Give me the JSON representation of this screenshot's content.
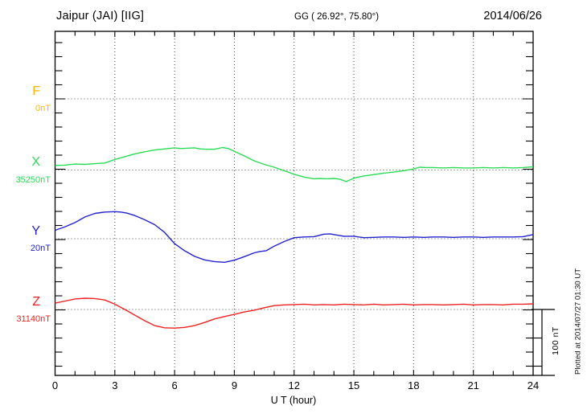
{
  "header": {
    "station": "Jaipur (JAI)  [IIG]",
    "coordinates": "GG ( 26.92°,  75.80°)",
    "date": "2014/06/26"
  },
  "footer": {
    "plotted_note": "Plotted at 2014/07/27 01:30 UT"
  },
  "colors": {
    "frame": "#000000",
    "grid": "#444444",
    "background": "#ffffff"
  },
  "chart_data": {
    "type": "line",
    "title": "Jaipur (JAI)  [IIG] magnetogram, 2014/06/26",
    "xlabel": "U T (hour)",
    "ylabel": "",
    "x_range": [
      0,
      24
    ],
    "x_major_ticks": [
      0,
      3,
      6,
      9,
      12,
      15,
      18,
      21,
      24
    ],
    "x_minor_tick_hours": 1,
    "minor_tick_nT": 20,
    "grid": "dotted vertical lines every 3 h; dotted horizontal line at each trace baseline",
    "legend_position": "left margin, one label per stacked trace",
    "scale_bar": {
      "label": "100 nT",
      "nT": 100
    },
    "series": [
      {
        "id": "F",
        "label": "F",
        "baseline_label": "0nT",
        "baseline_value_nT": 0,
        "color": "#FFB300",
        "note": "no trace plotted (data gap)",
        "points": []
      },
      {
        "id": "X",
        "label": "X",
        "baseline_label": "35250nT",
        "baseline_value_nT": 35250,
        "color": "#2BDB55",
        "points": [
          [
            0,
            6.5
          ],
          [
            0.5,
            7
          ],
          [
            1,
            8.5
          ],
          [
            1.5,
            8
          ],
          [
            2,
            9
          ],
          [
            2.5,
            10
          ],
          [
            3,
            15
          ],
          [
            3.5,
            19
          ],
          [
            4,
            23
          ],
          [
            4.5,
            26
          ],
          [
            5,
            28.5
          ],
          [
            5.5,
            30
          ],
          [
            6,
            31.5
          ],
          [
            6.3,
            30.5
          ],
          [
            6.6,
            31
          ],
          [
            7,
            31.5
          ],
          [
            7.3,
            30
          ],
          [
            7.6,
            29.5
          ],
          [
            8,
            29.5
          ],
          [
            8.4,
            32
          ],
          [
            8.7,
            30.5
          ],
          [
            9,
            26.5
          ],
          [
            9.5,
            20
          ],
          [
            10,
            13
          ],
          [
            10.5,
            8
          ],
          [
            11,
            4
          ],
          [
            11.5,
            -1
          ],
          [
            12,
            -6
          ],
          [
            12.5,
            -10
          ],
          [
            13,
            -12.5
          ],
          [
            13.3,
            -12
          ],
          [
            13.6,
            -12.5
          ],
          [
            14,
            -12
          ],
          [
            14.3,
            -13
          ],
          [
            14.6,
            -16.5
          ],
          [
            14.9,
            -13
          ],
          [
            15,
            -11.5
          ],
          [
            15.5,
            -8.5
          ],
          [
            16,
            -6.5
          ],
          [
            16.5,
            -4.5
          ],
          [
            17,
            -3
          ],
          [
            17.5,
            -1
          ],
          [
            18,
            1.5
          ],
          [
            18.3,
            4
          ],
          [
            18.6,
            3.5
          ],
          [
            19,
            3.5
          ],
          [
            19.5,
            3
          ],
          [
            20,
            3.5
          ],
          [
            20.5,
            3
          ],
          [
            21,
            3
          ],
          [
            21.5,
            3.5
          ],
          [
            22,
            3
          ],
          [
            22.5,
            3.5
          ],
          [
            23,
            3
          ],
          [
            23.5,
            3.5
          ],
          [
            24,
            4.5
          ]
        ]
      },
      {
        "id": "Y",
        "label": "Y",
        "baseline_label": "20nT",
        "baseline_value_nT": 20,
        "color": "#2222CC",
        "points": [
          [
            0,
            12
          ],
          [
            0.5,
            17
          ],
          [
            1,
            23
          ],
          [
            1.5,
            31
          ],
          [
            2,
            36
          ],
          [
            2.5,
            38
          ],
          [
            3,
            38.5
          ],
          [
            3.3,
            38
          ],
          [
            3.6,
            36.5
          ],
          [
            4,
            33
          ],
          [
            4.5,
            27
          ],
          [
            5,
            20
          ],
          [
            5.5,
            9
          ],
          [
            6,
            -7
          ],
          [
            6.5,
            -17
          ],
          [
            7,
            -25
          ],
          [
            7.5,
            -30
          ],
          [
            8,
            -32.5
          ],
          [
            8.5,
            -33.5
          ],
          [
            9,
            -30.5
          ],
          [
            9.5,
            -25.5
          ],
          [
            10,
            -20
          ],
          [
            10.3,
            -18
          ],
          [
            10.6,
            -17
          ],
          [
            11,
            -10.5
          ],
          [
            11.5,
            -4
          ],
          [
            12,
            1.5
          ],
          [
            12.5,
            2.5
          ],
          [
            13,
            3
          ],
          [
            13.5,
            6.5
          ],
          [
            13.8,
            7
          ],
          [
            14,
            6
          ],
          [
            14.5,
            3.5
          ],
          [
            15,
            3.5
          ],
          [
            15.5,
            1.5
          ],
          [
            16,
            2
          ],
          [
            16.5,
            2.5
          ],
          [
            17,
            2.5
          ],
          [
            17.5,
            2
          ],
          [
            18,
            2.5
          ],
          [
            18.5,
            2
          ],
          [
            19,
            2.5
          ],
          [
            19.5,
            2.5
          ],
          [
            20,
            2
          ],
          [
            20.5,
            2.5
          ],
          [
            21,
            2.5
          ],
          [
            21.5,
            2
          ],
          [
            22,
            2.5
          ],
          [
            22.5,
            2.5
          ],
          [
            23,
            2.5
          ],
          [
            23.5,
            3
          ],
          [
            24,
            6
          ]
        ]
      },
      {
        "id": "Z",
        "label": "Z",
        "baseline_label": "31140nT",
        "baseline_value_nT": 31140,
        "color": "#EE2222",
        "points": [
          [
            0,
            9
          ],
          [
            0.5,
            12
          ],
          [
            1,
            15
          ],
          [
            1.5,
            16
          ],
          [
            2,
            15.5
          ],
          [
            2.5,
            13.5
          ],
          [
            3,
            7.5
          ],
          [
            3.5,
            0
          ],
          [
            4,
            -8
          ],
          [
            4.5,
            -16
          ],
          [
            5,
            -23
          ],
          [
            5.5,
            -26
          ],
          [
            6,
            -26.5
          ],
          [
            6.5,
            -25.5
          ],
          [
            7,
            -23
          ],
          [
            7.5,
            -18.5
          ],
          [
            8,
            -13.5
          ],
          [
            8.5,
            -10
          ],
          [
            9,
            -7
          ],
          [
            9.5,
            -3.5
          ],
          [
            10,
            -1
          ],
          [
            10.5,
            2.5
          ],
          [
            11,
            5.5
          ],
          [
            11.5,
            6.5
          ],
          [
            12,
            7
          ],
          [
            12.5,
            7.5
          ],
          [
            13,
            6.5
          ],
          [
            13.5,
            7
          ],
          [
            14,
            6.5
          ],
          [
            14.5,
            7.5
          ],
          [
            15,
            7
          ],
          [
            15.5,
            6.5
          ],
          [
            16,
            7.5
          ],
          [
            16.5,
            6.5
          ],
          [
            17,
            7
          ],
          [
            17.5,
            7.5
          ],
          [
            18,
            6.5
          ],
          [
            18.5,
            7
          ],
          [
            19,
            7
          ],
          [
            19.5,
            6.5
          ],
          [
            20,
            7
          ],
          [
            20.5,
            7.5
          ],
          [
            21,
            6.5
          ],
          [
            21.5,
            7
          ],
          [
            22,
            7
          ],
          [
            22.5,
            6.5
          ],
          [
            23,
            7.5
          ],
          [
            23.5,
            7.5
          ],
          [
            24,
            8
          ]
        ]
      }
    ]
  }
}
